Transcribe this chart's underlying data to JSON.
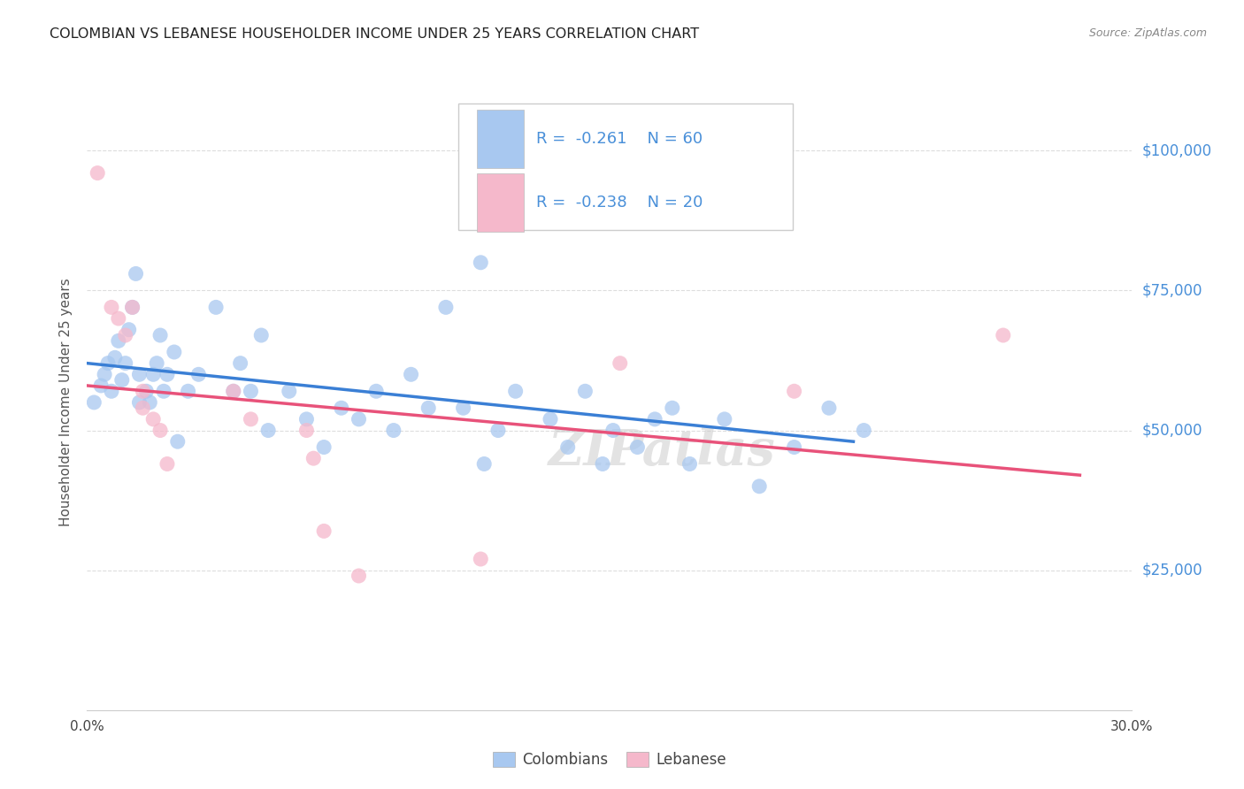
{
  "title": "COLOMBIAN VS LEBANESE HOUSEHOLDER INCOME UNDER 25 YEARS CORRELATION CHART",
  "source": "Source: ZipAtlas.com",
  "ylabel": "Householder Income Under 25 years",
  "xlim": [
    0.0,
    0.3
  ],
  "ylim": [
    0,
    110000
  ],
  "yticks": [
    25000,
    50000,
    75000,
    100000
  ],
  "ytick_labels": [
    "$25,000",
    "$50,000",
    "$75,000",
    "$100,000"
  ],
  "col_R": "-0.261",
  "col_N": "60",
  "leb_R": "-0.238",
  "leb_N": "20",
  "watermark": "ZIPatlas",
  "colombian_color": "#a8c8f0",
  "lebanese_color": "#f5b8cb",
  "line_colombian_color": "#3a7fd5",
  "line_lebanese_color": "#e8527a",
  "legend_text_color": "#4a90d9",
  "right_axis_color": "#4a90d9",
  "colombian_points": [
    [
      0.002,
      55000
    ],
    [
      0.004,
      58000
    ],
    [
      0.005,
      60000
    ],
    [
      0.006,
      62000
    ],
    [
      0.007,
      57000
    ],
    [
      0.008,
      63000
    ],
    [
      0.009,
      66000
    ],
    [
      0.01,
      59000
    ],
    [
      0.011,
      62000
    ],
    [
      0.012,
      68000
    ],
    [
      0.013,
      72000
    ],
    [
      0.014,
      78000
    ],
    [
      0.015,
      55000
    ],
    [
      0.015,
      60000
    ],
    [
      0.017,
      57000
    ],
    [
      0.018,
      55000
    ],
    [
      0.019,
      60000
    ],
    [
      0.02,
      62000
    ],
    [
      0.021,
      67000
    ],
    [
      0.022,
      57000
    ],
    [
      0.023,
      60000
    ],
    [
      0.025,
      64000
    ],
    [
      0.026,
      48000
    ],
    [
      0.029,
      57000
    ],
    [
      0.032,
      60000
    ],
    [
      0.037,
      72000
    ],
    [
      0.042,
      57000
    ],
    [
      0.044,
      62000
    ],
    [
      0.047,
      57000
    ],
    [
      0.05,
      67000
    ],
    [
      0.052,
      50000
    ],
    [
      0.058,
      57000
    ],
    [
      0.063,
      52000
    ],
    [
      0.068,
      47000
    ],
    [
      0.073,
      54000
    ],
    [
      0.078,
      52000
    ],
    [
      0.083,
      57000
    ],
    [
      0.088,
      50000
    ],
    [
      0.093,
      60000
    ],
    [
      0.098,
      54000
    ],
    [
      0.103,
      72000
    ],
    [
      0.108,
      54000
    ],
    [
      0.113,
      80000
    ],
    [
      0.114,
      44000
    ],
    [
      0.118,
      50000
    ],
    [
      0.123,
      57000
    ],
    [
      0.133,
      52000
    ],
    [
      0.138,
      47000
    ],
    [
      0.143,
      57000
    ],
    [
      0.148,
      44000
    ],
    [
      0.151,
      50000
    ],
    [
      0.158,
      47000
    ],
    [
      0.163,
      52000
    ],
    [
      0.168,
      54000
    ],
    [
      0.173,
      44000
    ],
    [
      0.183,
      52000
    ],
    [
      0.193,
      40000
    ],
    [
      0.203,
      47000
    ],
    [
      0.213,
      54000
    ],
    [
      0.223,
      50000
    ]
  ],
  "lebanese_points": [
    [
      0.003,
      96000
    ],
    [
      0.007,
      72000
    ],
    [
      0.009,
      70000
    ],
    [
      0.011,
      67000
    ],
    [
      0.013,
      72000
    ],
    [
      0.016,
      57000
    ],
    [
      0.016,
      54000
    ],
    [
      0.019,
      52000
    ],
    [
      0.021,
      50000
    ],
    [
      0.023,
      44000
    ],
    [
      0.042,
      57000
    ],
    [
      0.047,
      52000
    ],
    [
      0.063,
      50000
    ],
    [
      0.065,
      45000
    ],
    [
      0.068,
      32000
    ],
    [
      0.078,
      24000
    ],
    [
      0.113,
      27000
    ],
    [
      0.153,
      62000
    ],
    [
      0.203,
      57000
    ],
    [
      0.263,
      67000
    ]
  ],
  "background_color": "#ffffff",
  "grid_color": "#dddddd"
}
